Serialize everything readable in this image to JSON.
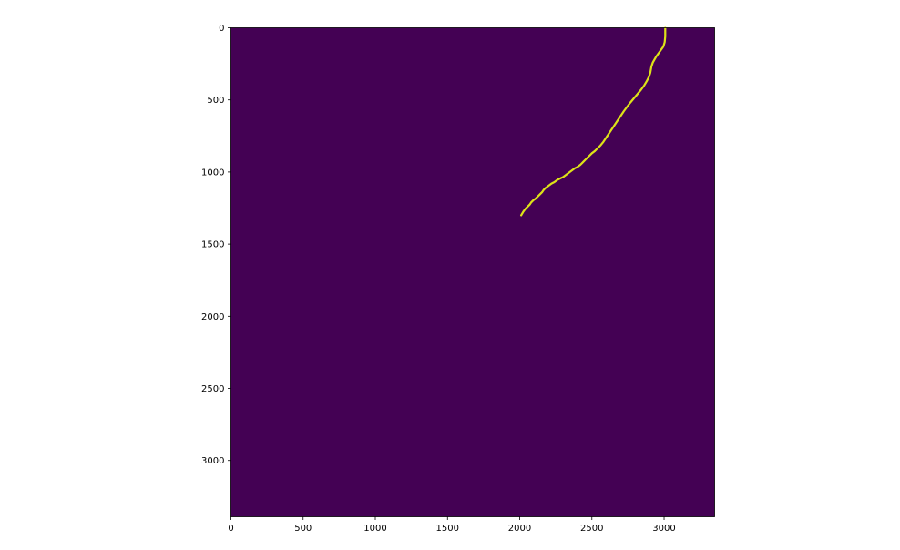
{
  "chart_data": {
    "type": "heatmap",
    "title": "",
    "xlabel": "",
    "ylabel": "",
    "xlim": [
      0,
      3350
    ],
    "ylim": [
      3390,
      0
    ],
    "y_axis_inverted": true,
    "grid": false,
    "colormap": "viridis",
    "background_value_color": "#440154",
    "trace_value_color": "#DDE318",
    "x_ticks": [
      0,
      500,
      1000,
      1500,
      2000,
      2500,
      3000
    ],
    "x_tick_labels": [
      "0",
      "500",
      "1000",
      "1500",
      "2000",
      "2500",
      "3000"
    ],
    "y_ticks": [
      0,
      500,
      1000,
      1500,
      2000,
      2500,
      3000
    ],
    "y_tick_labels": [
      "0",
      "500",
      "1000",
      "1500",
      "2000",
      "2500",
      "3000"
    ],
    "trace": {
      "x": [
        3008,
        3008,
        3004,
        2995,
        2970,
        2945,
        2922,
        2912,
        2905,
        2895,
        2880,
        2862,
        2840,
        2815,
        2790,
        2765,
        2742,
        2720,
        2700,
        2680,
        2660,
        2640,
        2620,
        2600,
        2580,
        2560,
        2540,
        2520,
        2500,
        2480,
        2460,
        2440,
        2420,
        2400,
        2380,
        2360,
        2340,
        2320,
        2300,
        2280,
        2260,
        2240,
        2220,
        2200,
        2180,
        2165,
        2155,
        2140,
        2125,
        2110,
        2095,
        2080,
        2070,
        2055,
        2040,
        2025,
        2010
      ],
      "y": [
        0,
        60,
        100,
        130,
        165,
        200,
        240,
        270,
        310,
        340,
        370,
        400,
        430,
        460,
        490,
        520,
        550,
        580,
        610,
        640,
        670,
        700,
        730,
        760,
        790,
        815,
        835,
        855,
        870,
        890,
        910,
        930,
        950,
        965,
        975,
        990,
        1005,
        1020,
        1035,
        1045,
        1055,
        1070,
        1080,
        1095,
        1110,
        1125,
        1140,
        1155,
        1170,
        1185,
        1195,
        1210,
        1225,
        1240,
        1255,
        1275,
        1300
      ]
    }
  }
}
